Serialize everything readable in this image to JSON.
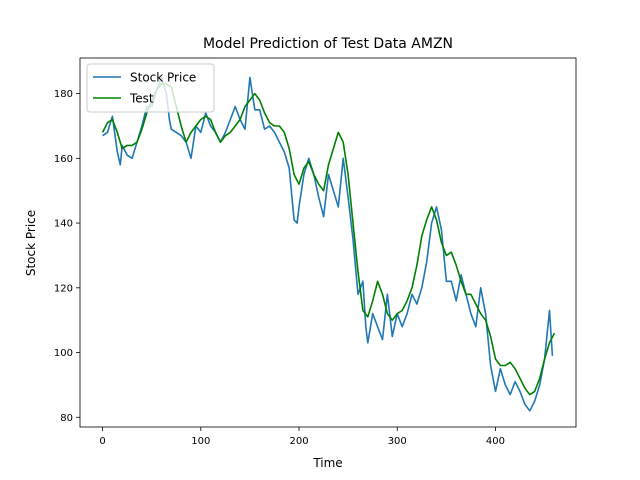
{
  "chart_data": {
    "type": "line",
    "title": "Model Prediction of Test Data AMZN",
    "xlabel": "Time",
    "ylabel": "Stock Price",
    "xlim": [
      -23,
      482
    ],
    "ylim": [
      77,
      191
    ],
    "xticks": [
      0,
      100,
      200,
      300,
      400
    ],
    "yticks": [
      80,
      100,
      120,
      140,
      160,
      180
    ],
    "grid": false,
    "legend_position": "top-left",
    "series": [
      {
        "name": "Stock Price",
        "color": "#1f77b4",
        "x": [
          0,
          5,
          10,
          15,
          18,
          20,
          25,
          30,
          35,
          40,
          45,
          50,
          55,
          60,
          65,
          68,
          70,
          75,
          80,
          85,
          90,
          95,
          100,
          105,
          110,
          115,
          120,
          125,
          130,
          135,
          140,
          145,
          150,
          155,
          160,
          165,
          170,
          175,
          180,
          185,
          190,
          195,
          198,
          200,
          205,
          210,
          215,
          220,
          225,
          230,
          235,
          240,
          245,
          250,
          255,
          260,
          265,
          268,
          270,
          275,
          280,
          285,
          290,
          295,
          300,
          305,
          310,
          315,
          320,
          325,
          330,
          335,
          340,
          345,
          350,
          355,
          360,
          365,
          370,
          375,
          380,
          385,
          390,
          395,
          400,
          405,
          410,
          415,
          420,
          425,
          430,
          435,
          440,
          445,
          450,
          455,
          458
        ],
        "values": [
          167,
          168,
          173,
          162,
          158,
          164,
          161,
          160,
          165,
          170,
          176,
          176,
          181,
          185,
          180,
          172,
          169,
          168,
          167,
          165,
          160,
          170,
          168,
          174,
          170,
          168,
          165,
          168,
          172,
          176,
          172,
          169,
          185,
          175,
          175,
          169,
          170,
          168,
          165,
          162,
          157,
          141,
          140,
          145,
          155,
          160,
          155,
          148,
          142,
          155,
          150,
          145,
          160,
          148,
          135,
          118,
          122,
          108,
          103,
          112,
          108,
          104,
          118,
          105,
          112,
          108,
          112,
          118,
          115,
          120,
          128,
          140,
          145,
          138,
          122,
          122,
          116,
          124,
          118,
          112,
          108,
          120,
          112,
          96,
          88,
          95,
          90,
          87,
          91,
          88,
          84,
          82,
          85,
          90,
          98,
          113,
          99
        ]
      },
      {
        "name": "Test",
        "color": "#008000",
        "x": [
          0,
          5,
          10,
          15,
          20,
          25,
          30,
          35,
          40,
          45,
          50,
          55,
          60,
          65,
          70,
          75,
          80,
          85,
          90,
          95,
          100,
          105,
          110,
          115,
          120,
          125,
          130,
          135,
          140,
          145,
          150,
          155,
          160,
          165,
          170,
          175,
          180,
          185,
          190,
          195,
          200,
          205,
          210,
          215,
          220,
          225,
          230,
          235,
          240,
          245,
          250,
          255,
          260,
          265,
          270,
          275,
          280,
          285,
          290,
          295,
          300,
          305,
          310,
          315,
          320,
          325,
          330,
          335,
          340,
          345,
          350,
          355,
          360,
          365,
          370,
          375,
          380,
          385,
          390,
          395,
          400,
          405,
          410,
          415,
          420,
          425,
          430,
          435,
          440,
          445,
          450,
          455,
          460
        ],
        "values": [
          168,
          171,
          172,
          168,
          163,
          164,
          164,
          165,
          169,
          174,
          178,
          181,
          183,
          183,
          182,
          176,
          170,
          165,
          168,
          170,
          172,
          173,
          172,
          168,
          165,
          167,
          168,
          170,
          172,
          176,
          178,
          180,
          178,
          174,
          171,
          170,
          170,
          168,
          163,
          155,
          152,
          157,
          159,
          155,
          152,
          150,
          158,
          163,
          168,
          165,
          155,
          140,
          125,
          113,
          111,
          116,
          122,
          118,
          112,
          110,
          112,
          113,
          116,
          120,
          127,
          136,
          141,
          145,
          141,
          134,
          130,
          131,
          127,
          122,
          118,
          118,
          115,
          112,
          110,
          105,
          98,
          96,
          96,
          97,
          95,
          92,
          89,
          87,
          88,
          92,
          98,
          103,
          106
        ]
      }
    ]
  }
}
